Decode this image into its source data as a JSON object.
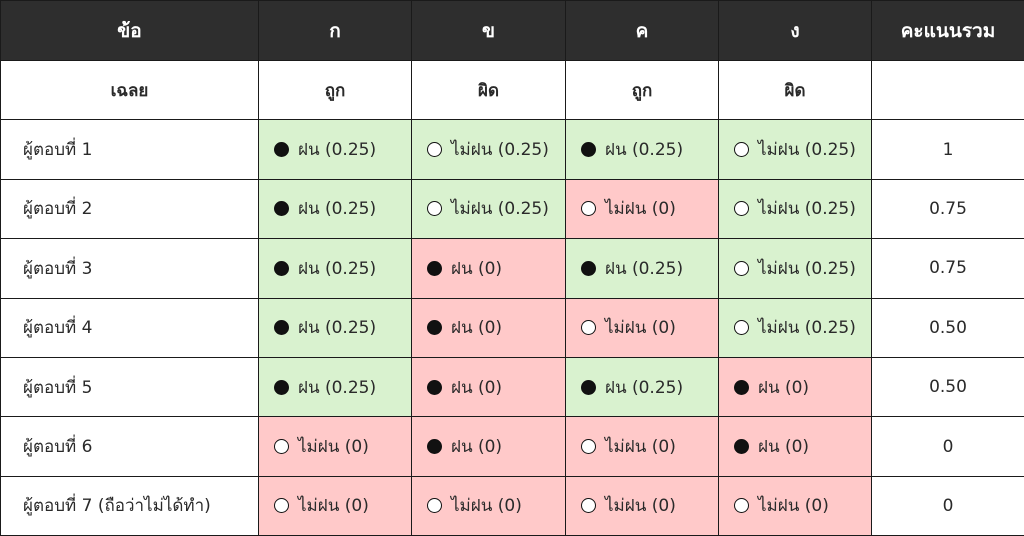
{
  "header": [
    "ข้อ",
    "ก",
    "ข",
    "ค",
    "ง",
    "คะแนนรวม"
  ],
  "key_row": {
    "label": "เฉลย",
    "answers": [
      "ถูก",
      "ผิด",
      "ถูก",
      "ผิด"
    ],
    "total": ""
  },
  "rows": [
    {
      "label": "ผู้ตอบที่ 1",
      "total": "1",
      "cells": [
        {
          "text": "ฝน (0.25)",
          "mark": "filled",
          "status": "correct"
        },
        {
          "text": "ไม่ฝน (0.25)",
          "mark": "empty",
          "status": "correct"
        },
        {
          "text": "ฝน (0.25)",
          "mark": "filled",
          "status": "correct"
        },
        {
          "text": "ไม่ฝน (0.25)",
          "mark": "empty",
          "status": "correct"
        }
      ]
    },
    {
      "label": "ผู้ตอบที่ 2",
      "total": "0.75",
      "cells": [
        {
          "text": "ฝน (0.25)",
          "mark": "filled",
          "status": "correct"
        },
        {
          "text": "ไม่ฝน (0.25)",
          "mark": "empty",
          "status": "correct"
        },
        {
          "text": "ไม่ฝน (0)",
          "mark": "empty",
          "status": "wrong"
        },
        {
          "text": "ไม่ฝน (0.25)",
          "mark": "empty",
          "status": "correct"
        }
      ]
    },
    {
      "label": "ผู้ตอบที่ 3",
      "total": "0.75",
      "cells": [
        {
          "text": "ฝน (0.25)",
          "mark": "filled",
          "status": "correct"
        },
        {
          "text": "ฝน (0)",
          "mark": "filled",
          "status": "wrong"
        },
        {
          "text": "ฝน (0.25)",
          "mark": "filled",
          "status": "correct"
        },
        {
          "text": "ไม่ฝน (0.25)",
          "mark": "empty",
          "status": "correct"
        }
      ]
    },
    {
      "label": "ผู้ตอบที่ 4",
      "total": "0.50",
      "cells": [
        {
          "text": "ฝน (0.25)",
          "mark": "filled",
          "status": "correct"
        },
        {
          "text": "ฝน (0)",
          "mark": "filled",
          "status": "wrong"
        },
        {
          "text": "ไม่ฝน (0)",
          "mark": "empty",
          "status": "wrong"
        },
        {
          "text": "ไม่ฝน (0.25)",
          "mark": "empty",
          "status": "correct"
        }
      ]
    },
    {
      "label": "ผู้ตอบที่ 5",
      "total": "0.50",
      "cells": [
        {
          "text": "ฝน (0.25)",
          "mark": "filled",
          "status": "correct"
        },
        {
          "text": "ฝน (0)",
          "mark": "filled",
          "status": "wrong"
        },
        {
          "text": "ฝน (0.25)",
          "mark": "filled",
          "status": "correct"
        },
        {
          "text": "ฝน (0)",
          "mark": "filled",
          "status": "wrong"
        }
      ]
    },
    {
      "label": "ผู้ตอบที่ 6",
      "total": "0",
      "cells": [
        {
          "text": "ไม่ฝน (0)",
          "mark": "empty",
          "status": "wrong"
        },
        {
          "text": "ฝน (0)",
          "mark": "filled",
          "status": "wrong"
        },
        {
          "text": "ไม่ฝน (0)",
          "mark": "empty",
          "status": "wrong"
        },
        {
          "text": "ฝน (0)",
          "mark": "filled",
          "status": "wrong"
        }
      ]
    },
    {
      "label": "ผู้ตอบที่ 7 (ถือว่าไม่ได้ทำ)",
      "total": "0",
      "cells": [
        {
          "text": "ไม่ฝน (0)",
          "mark": "empty",
          "status": "wrong"
        },
        {
          "text": "ไม่ฝน (0)",
          "mark": "empty",
          "status": "wrong"
        },
        {
          "text": "ไม่ฝน (0)",
          "mark": "empty",
          "status": "wrong"
        },
        {
          "text": "ไม่ฝน (0)",
          "mark": "empty",
          "status": "wrong"
        }
      ]
    }
  ],
  "colors": {
    "header_bg": "#2e2e2e",
    "correct_bg": "#d9f2cf",
    "wrong_bg": "#ffc9c9",
    "border": "#1a1a1a"
  }
}
